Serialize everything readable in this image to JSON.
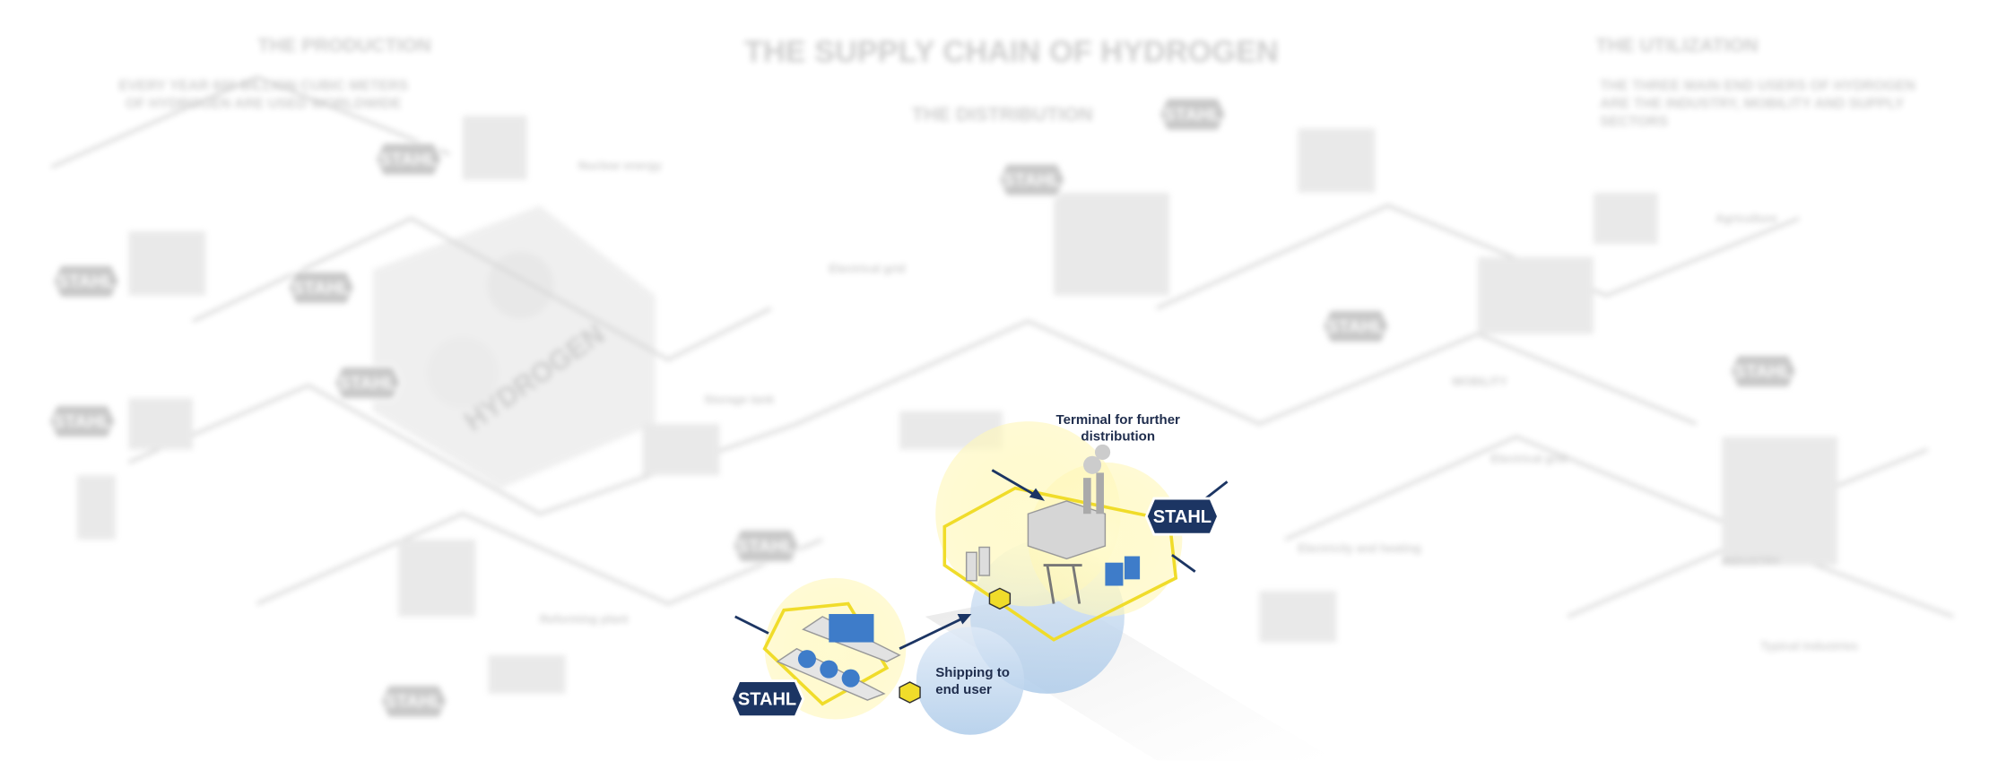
{
  "header": {
    "title": "THE SUPPLY CHAIN OF HYDROGEN"
  },
  "sections": [
    {
      "title": "THE PRODUCTION",
      "subtitle_lines": [
        "EVERY YEAR 600 BILLION CUBIC METERS",
        "OF HYDROGEN ARE USED WORLDWIDE"
      ]
    },
    {
      "title": "THE DISTRIBUTION",
      "subtitle_lines": []
    },
    {
      "title": "THE UTILIZATION",
      "subtitle_lines": [
        "THE THREE MAIN END USERS OF HYDROGEN",
        "ARE THE INDUSTRY, MOBILITY AND SUPPLY",
        "SECTORS"
      ]
    }
  ],
  "center_label": "HYDROGEN",
  "background_labels": [
    "Nuclear energy",
    "Electrical grid",
    "Storage tank",
    "Reforming plant",
    "Agriculture",
    "MOBILITY",
    "INDUSTRY",
    "Electricity and heating",
    "Electrical grid",
    "Typical industries"
  ],
  "background_badges": [
    "STAHL",
    "STAHL",
    "STAHL",
    "STAHL",
    "STAHL",
    "STAHL",
    "STAHL",
    "STAHL",
    "STAHL",
    "STAHL",
    "STAHL"
  ],
  "highlight": {
    "terminal_label_lines": [
      "Terminal for further",
      "distribution"
    ],
    "shipping_label_lines": [
      "Shipping to",
      "end user"
    ],
    "badges": [
      "STAHL",
      "STAHL"
    ]
  }
}
